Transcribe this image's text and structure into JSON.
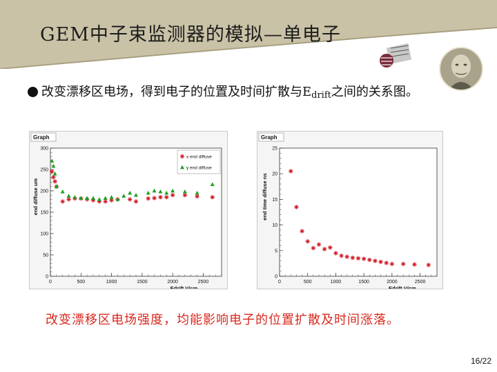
{
  "slide": {
    "title": "GEM中子束监测器的模拟—单电子",
    "bullet_main": "改变漂移区电场，得到电子的位置及时间扩散与E",
    "bullet_sub": "drift",
    "bullet_tail": "之间的关系图。",
    "caption": "改变漂移区电场强度，均能影响电子的位置扩散及时间涨落。",
    "page_number": "16/22"
  },
  "colors": {
    "title_band": "#c9c2a6",
    "caption": "#d9281e",
    "series_x": "#d0202a",
    "series_y": "#1ea020"
  },
  "chart_data": [
    {
      "type": "scatter",
      "title": "Graph",
      "xlabel": "Edrift V/cm",
      "ylabel": "end diffuse um",
      "xlim": [
        0,
        2800
      ],
      "ylim": [
        0,
        300
      ],
      "xticks": [
        0,
        500,
        1000,
        1500,
        2000,
        2500
      ],
      "yticks": [
        0,
        50,
        100,
        150,
        200,
        250,
        300
      ],
      "legend": "top-right",
      "series": [
        {
          "name": "x end diffuse",
          "marker": "star",
          "color": "#d0202a",
          "points": [
            [
              25,
              245
            ],
            [
              50,
              232
            ],
            [
              75,
              222
            ],
            [
              100,
              210
            ],
            [
              200,
              175
            ],
            [
              300,
              180
            ],
            [
              400,
              182
            ],
            [
              500,
              182
            ],
            [
              600,
              180
            ],
            [
              700,
              178
            ],
            [
              800,
              175
            ],
            [
              900,
              175
            ],
            [
              1000,
              178
            ],
            [
              1100,
              180
            ],
            [
              1300,
              180
            ],
            [
              1400,
              175
            ],
            [
              1600,
              182
            ],
            [
              1700,
              183
            ],
            [
              1800,
              185
            ],
            [
              1900,
              185
            ],
            [
              2000,
              190
            ],
            [
              2200,
              190
            ],
            [
              2400,
              187
            ],
            [
              2650,
              185
            ]
          ]
        },
        {
          "name": "y end diffuse",
          "marker": "triangle",
          "color": "#1ea020",
          "points": [
            [
              25,
              270
            ],
            [
              50,
              258
            ],
            [
              75,
              240
            ],
            [
              100,
              210
            ],
            [
              200,
              198
            ],
            [
              300,
              188
            ],
            [
              400,
              185
            ],
            [
              500,
              183
            ],
            [
              600,
              183
            ],
            [
              700,
              183
            ],
            [
              800,
              180
            ],
            [
              900,
              183
            ],
            [
              1000,
              185
            ],
            [
              1100,
              180
            ],
            [
              1200,
              188
            ],
            [
              1300,
              195
            ],
            [
              1400,
              190
            ],
            [
              1600,
              195
            ],
            [
              1700,
              200
            ],
            [
              1800,
              198
            ],
            [
              1900,
              195
            ],
            [
              2000,
              200
            ],
            [
              2200,
              198
            ],
            [
              2400,
              195
            ],
            [
              2650,
              215
            ]
          ]
        }
      ]
    },
    {
      "type": "scatter",
      "title": "Graph",
      "xlabel": "Edrift V/cm",
      "ylabel": "end time diffuse ns",
      "xlim": [
        0,
        2800
      ],
      "ylim": [
        0,
        25
      ],
      "xticks": [
        0,
        500,
        1000,
        1500,
        2000,
        2500
      ],
      "yticks": [
        0,
        5,
        10,
        15,
        20,
        25
      ],
      "series": [
        {
          "marker": "star",
          "color": "#d0202a",
          "points": [
            [
              200,
              20.5
            ],
            [
              300,
              13.5
            ],
            [
              400,
              8.8
            ],
            [
              500,
              6.8
            ],
            [
              600,
              5.5
            ],
            [
              700,
              6.2
            ],
            [
              800,
              5.3
            ],
            [
              900,
              5.6
            ],
            [
              1000,
              4.5
            ],
            [
              1100,
              4.0
            ],
            [
              1200,
              3.8
            ],
            [
              1300,
              3.6
            ],
            [
              1400,
              3.5
            ],
            [
              1500,
              3.4
            ],
            [
              1600,
              3.2
            ],
            [
              1700,
              3.0
            ],
            [
              1800,
              2.8
            ],
            [
              1900,
              2.6
            ],
            [
              2000,
              2.4
            ],
            [
              2200,
              2.4
            ],
            [
              2400,
              2.3
            ],
            [
              2650,
              2.2
            ]
          ]
        }
      ]
    }
  ]
}
